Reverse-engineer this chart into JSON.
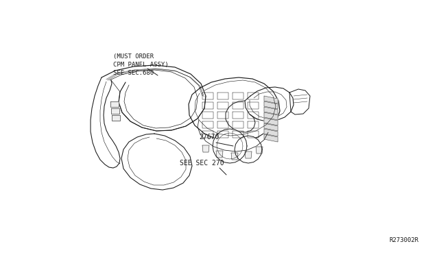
{
  "bg_color": "#ffffff",
  "line_color": "#1a1a1a",
  "ref_number": "R273002R",
  "label_must_order": "(MUST ORDER\nCPM PANEL ASSY)\nSEE SEC.680",
  "label_27670": "27670",
  "label_see_sec270": "SEE SEC 270",
  "font_size": 6.5,
  "line_width": 0.7
}
